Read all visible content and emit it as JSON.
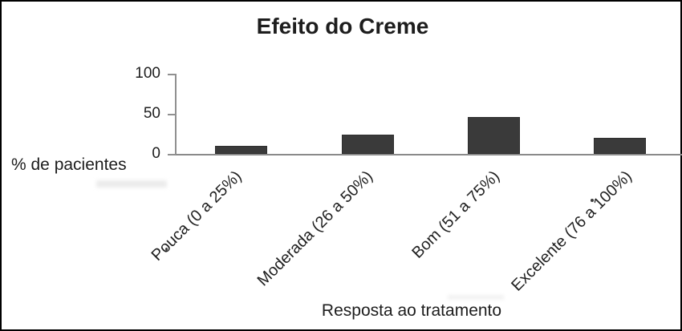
{
  "figure": {
    "background_color": "#ffffff",
    "border_color": "#000000"
  },
  "chart_data": {
    "type": "bar",
    "title": "Efeito do Creme",
    "xlabel": "Resposta ao tratamento",
    "ylabel": "% de pacientes",
    "categories": [
      "Pouca (0 a 25%)",
      "Moderada (26 a 50%)",
      "Bom (51 a 75%)",
      "Excelente (76 a 100%)"
    ],
    "values": [
      10,
      24,
      46,
      20
    ],
    "ylim": [
      0,
      100
    ],
    "yticks": [
      0,
      50,
      100
    ],
    "grid": false,
    "legend": "none",
    "category_rotation_deg": 45,
    "bar_color": "#3a3a3a",
    "axis_color": "#909090",
    "text_color": "#1d1d1d"
  }
}
